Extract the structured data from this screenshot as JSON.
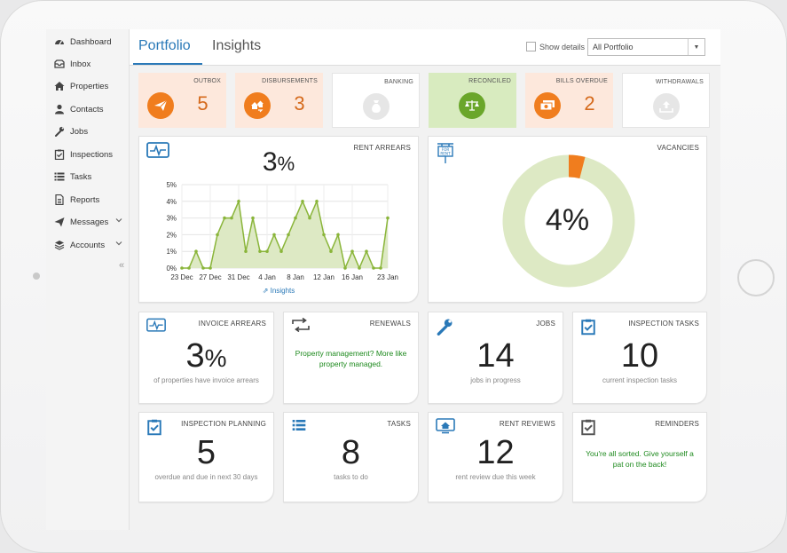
{
  "nav": {
    "dashboard": "Dashboard",
    "inbox": "Inbox",
    "properties": "Properties",
    "contacts": "Contacts",
    "jobs": "Jobs",
    "inspections": "Inspections",
    "tasks": "Tasks",
    "reports": "Reports",
    "messages": "Messages",
    "accounts": "Accounts"
  },
  "tabs": {
    "portfolio": "Portfolio",
    "insights": "Insights"
  },
  "show_details": "Show details",
  "portfolio_select": "All Portfolio",
  "stats": {
    "outbox": {
      "label": "OUTBOX",
      "value": "5"
    },
    "disbursements": {
      "label": "DISBURSEMENTS",
      "value": "3"
    },
    "banking": {
      "label": "BANKING"
    },
    "reconciled": {
      "label": "RECONCILED"
    },
    "bills_overdue": {
      "label": "BILLS OVERDUE",
      "value": "2"
    },
    "withdrawals": {
      "label": "WITHDRAWALS"
    }
  },
  "rent_arrears": {
    "title": "RENT ARREARS",
    "value": "3",
    "unit": "%",
    "insights_link": "Insights"
  },
  "chart_data": {
    "type": "area",
    "title": "",
    "xlabel": "",
    "ylabel": "",
    "x_tick_labels": [
      "23 Dec",
      "27 Dec",
      "31 Dec",
      "4 Jan",
      "8 Jan",
      "12 Jan",
      "16 Jan",
      "23 Jan"
    ],
    "y_tick_labels": [
      "0%",
      "1%",
      "2%",
      "3%",
      "4%",
      "5%"
    ],
    "ylim": [
      0,
      5
    ],
    "series": [
      {
        "values": [
          0,
          0,
          1,
          0,
          0,
          2,
          3,
          3,
          4,
          1,
          3,
          1,
          1,
          2,
          1,
          2,
          3,
          4,
          3,
          4,
          2,
          1,
          2,
          0,
          1,
          0,
          1,
          0,
          0,
          3
        ]
      }
    ],
    "line_color": "#8ab53a",
    "fill_color": "#dde9c4",
    "grid": true
  },
  "vacancies": {
    "title": "VACANCIES",
    "value": "4%",
    "fraction": 0.04
  },
  "invoice_arrears": {
    "title": "INVOICE ARREARS",
    "value": "3",
    "unit": "%",
    "sub": "of properties have invoice arrears"
  },
  "renewals": {
    "title": "RENEWALS",
    "message": "Property management? More like property managed."
  },
  "jobs": {
    "title": "JOBS",
    "value": "14",
    "sub": "jobs in progress"
  },
  "inspection_tasks": {
    "title": "INSPECTION TASKS",
    "value": "10",
    "sub": "current inspection tasks"
  },
  "inspection_planning": {
    "title": "INSPECTION PLANNING",
    "value": "5",
    "sub": "overdue and due in next 30 days"
  },
  "tasks": {
    "title": "TASKS",
    "value": "8",
    "sub": "tasks to do"
  },
  "rent_reviews": {
    "title": "RENT REVIEWS",
    "value": "12",
    "sub": "rent review due this week"
  },
  "reminders": {
    "title": "REMINDERS",
    "message": "You're all sorted. Give yourself a pat on the back!"
  },
  "colors": {
    "accent": "#2a79b8",
    "orange": "#f07d1e",
    "green": "#8ab53a",
    "stat_bg": "#fde8dc",
    "reconciled_bg": "#d8ebbf"
  }
}
